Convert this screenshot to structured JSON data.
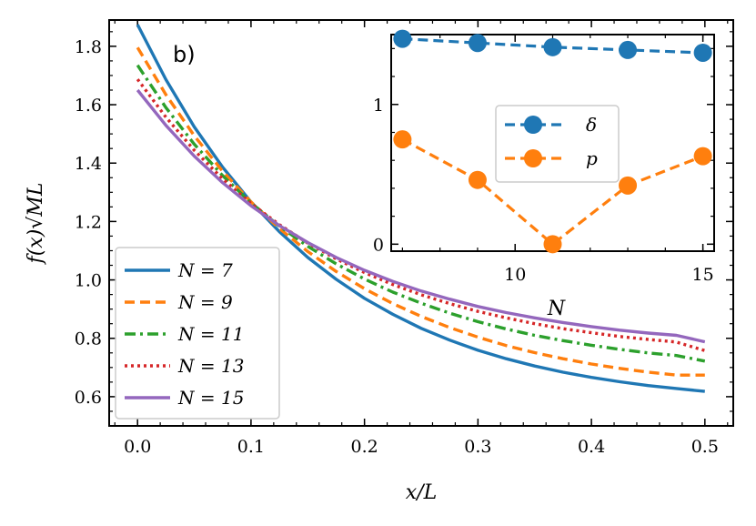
{
  "panel_label": "b)",
  "chart_data": [
    {
      "type": "line",
      "xlabel": "x/L",
      "ylabel": "f(x)√ML",
      "xlim": [
        -0.025,
        0.525
      ],
      "ylim": [
        0.5,
        1.89
      ],
      "xticks": [
        0.0,
        0.1,
        0.2,
        0.3,
        0.4,
        0.5
      ],
      "xtick_labels": [
        "0.0",
        "0.1",
        "0.2",
        "0.3",
        "0.4",
        "0.5"
      ],
      "yticks": [
        0.6,
        0.8,
        1.0,
        1.2,
        1.4,
        1.6,
        1.8
      ],
      "ytick_labels": [
        "0.6",
        "0.8",
        "1.0",
        "1.2",
        "1.4",
        "1.6",
        "1.8"
      ],
      "legend_position": "lower-left",
      "x": [
        0.0,
        0.025,
        0.05,
        0.075,
        0.1,
        0.125,
        0.15,
        0.175,
        0.2,
        0.225,
        0.25,
        0.275,
        0.3,
        0.325,
        0.35,
        0.375,
        0.4,
        0.425,
        0.45,
        0.475,
        0.5
      ],
      "series": [
        {
          "name": "N = 7",
          "color": "#1f77b4",
          "dash": "solid",
          "values": [
            1.874,
            1.686,
            1.524,
            1.386,
            1.267,
            1.165,
            1.077,
            1.002,
            0.937,
            0.882,
            0.834,
            0.794,
            0.759,
            0.73,
            0.705,
            0.684,
            0.666,
            0.651,
            0.638,
            0.628,
            0.618
          ]
        },
        {
          "name": "N = 9",
          "color": "#ff7f0e",
          "dash": "dashed",
          "values": [
            1.796,
            1.634,
            1.494,
            1.372,
            1.267,
            1.176,
            1.097,
            1.029,
            0.97,
            0.919,
            0.875,
            0.837,
            0.804,
            0.775,
            0.751,
            0.73,
            0.712,
            0.697,
            0.684,
            0.674,
            0.674
          ]
        },
        {
          "name": "N = 11",
          "color": "#2ca02c",
          "dash": "dashdot",
          "values": [
            1.735,
            1.59,
            1.465,
            1.357,
            1.264,
            1.184,
            1.115,
            1.055,
            1.003,
            0.958,
            0.92,
            0.886,
            0.857,
            0.832,
            0.81,
            0.792,
            0.776,
            0.762,
            0.75,
            0.741,
            0.722
          ]
        },
        {
          "name": "N = 13",
          "color": "#d62728",
          "dash": "dotted",
          "values": [
            1.687,
            1.557,
            1.444,
            1.346,
            1.262,
            1.189,
            1.126,
            1.072,
            1.025,
            0.984,
            0.949,
            0.919,
            0.892,
            0.87,
            0.85,
            0.833,
            0.819,
            0.806,
            0.796,
            0.787,
            0.758
          ]
        },
        {
          "name": "N = 15",
          "color": "#9467bd",
          "dash": "solid",
          "values": [
            1.65,
            1.529,
            1.424,
            1.333,
            1.254,
            1.186,
            1.128,
            1.077,
            1.033,
            0.995,
            0.962,
            0.934,
            0.909,
            0.888,
            0.87,
            0.854,
            0.84,
            0.828,
            0.818,
            0.81,
            0.788
          ]
        }
      ]
    },
    {
      "type": "line",
      "xlabel": "N",
      "ylabel": "",
      "xlim": [
        6.7,
        15.3
      ],
      "ylim": [
        -0.05,
        1.5
      ],
      "xticks": [
        10,
        15
      ],
      "xtick_labels": [
        "10",
        "15"
      ],
      "yticks": [
        0,
        1
      ],
      "ytick_labels": [
        "0",
        "1"
      ],
      "legend_position": "center-right",
      "x": [
        7,
        9,
        11,
        13,
        15
      ],
      "series": [
        {
          "name": "δ",
          "color": "#1f77b4",
          "dash": "dashed",
          "marker": "circle",
          "values": [
            1.47,
            1.44,
            1.41,
            1.39,
            1.37
          ]
        },
        {
          "name": "p",
          "color": "#ff7f0e",
          "dash": "dashed",
          "marker": "circle",
          "values": [
            0.75,
            0.46,
            0.0,
            0.42,
            0.63
          ]
        }
      ]
    }
  ]
}
